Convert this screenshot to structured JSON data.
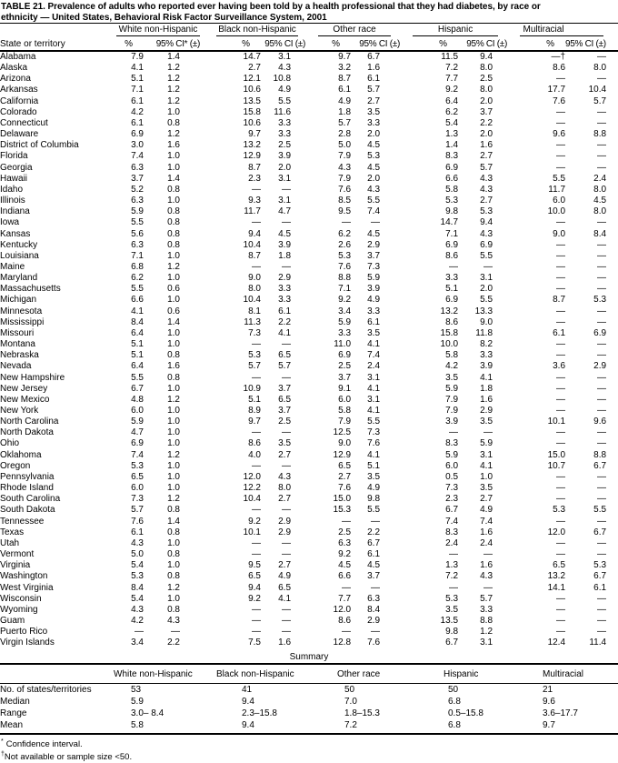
{
  "title": {
    "line1": "TABLE 21. Prevalence of adults who reported ever having been told by a health professional that they had diabetes, by race or",
    "line2": "ethnicity — United States, Behavioral Risk Factor Surveillance System, 2001"
  },
  "table": {
    "row_label_header": "State or territory",
    "groups": [
      "White non-Hispanic",
      "Black non-Hispanic",
      "Other race",
      "Hispanic",
      "Multiracial"
    ],
    "subheaders": {
      "pct": "%",
      "ci_first": "95% CI* (±)",
      "ci": "95% CI (±)"
    },
    "rows": [
      {
        "state": "Alabama",
        "values": [
          "7.9",
          "1.4",
          "14.7",
          "3.1",
          "9.7",
          "6.7",
          "11.5",
          "9.4",
          "—†",
          "—"
        ]
      },
      {
        "state": "Alaska",
        "values": [
          "4.1",
          "1.2",
          "2.7",
          "4.3",
          "3.2",
          "1.6",
          "7.2",
          "8.0",
          "8.6",
          "8.0"
        ]
      },
      {
        "state": "Arizona",
        "values": [
          "5.1",
          "1.2",
          "12.1",
          "10.8",
          "8.7",
          "6.1",
          "7.7",
          "2.5",
          "—",
          "—"
        ]
      },
      {
        "state": "Arkansas",
        "values": [
          "7.1",
          "1.2",
          "10.6",
          "4.9",
          "6.1",
          "5.7",
          "9.2",
          "8.0",
          "17.7",
          "10.4"
        ]
      },
      {
        "state": "California",
        "values": [
          "6.1",
          "1.2",
          "13.5",
          "5.5",
          "4.9",
          "2.7",
          "6.4",
          "2.0",
          "7.6",
          "5.7"
        ]
      },
      {
        "state": "Colorado",
        "values": [
          "4.2",
          "1.0",
          "15.8",
          "11.6",
          "1.8",
          "3.5",
          "6.2",
          "3.7",
          "—",
          "—"
        ]
      },
      {
        "state": "Connecticut",
        "values": [
          "6.1",
          "0.8",
          "10.6",
          "3.3",
          "5.7",
          "3.3",
          "5.4",
          "2.2",
          "—",
          "—"
        ]
      },
      {
        "state": "Delaware",
        "values": [
          "6.9",
          "1.2",
          "9.7",
          "3.3",
          "2.8",
          "2.0",
          "1.3",
          "2.0",
          "9.6",
          "8.8"
        ]
      },
      {
        "state": "District of Columbia",
        "values": [
          "3.0",
          "1.6",
          "13.2",
          "2.5",
          "5.0",
          "4.5",
          "1.4",
          "1.6",
          "—",
          "—"
        ]
      },
      {
        "state": "Florida",
        "values": [
          "7.4",
          "1.0",
          "12.9",
          "3.9",
          "7.9",
          "5.3",
          "8.3",
          "2.7",
          "—",
          "—"
        ]
      },
      {
        "state": "Georgia",
        "values": [
          "6.3",
          "1.0",
          "8.7",
          "2.0",
          "4.3",
          "4.5",
          "6.9",
          "5.7",
          "—",
          "—"
        ]
      },
      {
        "state": "Hawaii",
        "values": [
          "3.7",
          "1.4",
          "2.3",
          "3.1",
          "7.9",
          "2.0",
          "6.6",
          "4.3",
          "5.5",
          "2.4"
        ]
      },
      {
        "state": "Idaho",
        "values": [
          "5.2",
          "0.8",
          "—",
          "—",
          "7.6",
          "4.3",
          "5.8",
          "4.3",
          "11.7",
          "8.0"
        ]
      },
      {
        "state": "Illinois",
        "values": [
          "6.3",
          "1.0",
          "9.3",
          "3.1",
          "8.5",
          "5.5",
          "5.3",
          "2.7",
          "6.0",
          "4.5"
        ]
      },
      {
        "state": "Indiana",
        "values": [
          "5.9",
          "0.8",
          "11.7",
          "4.7",
          "9.5",
          "7.4",
          "9.8",
          "5.3",
          "10.0",
          "8.0"
        ]
      },
      {
        "state": "Iowa",
        "values": [
          "5.5",
          "0.8",
          "—",
          "—",
          "—",
          "—",
          "14.7",
          "9.4",
          "—",
          "—"
        ]
      },
      {
        "state": "Kansas",
        "values": [
          "5.6",
          "0.8",
          "9.4",
          "4.5",
          "6.2",
          "4.5",
          "7.1",
          "4.3",
          "9.0",
          "8.4"
        ]
      },
      {
        "state": "Kentucky",
        "values": [
          "6.3",
          "0.8",
          "10.4",
          "3.9",
          "2.6",
          "2.9",
          "6.9",
          "6.9",
          "—",
          "—"
        ]
      },
      {
        "state": "Louisiana",
        "values": [
          "7.1",
          "1.0",
          "8.7",
          "1.8",
          "5.3",
          "3.7",
          "8.6",
          "5.5",
          "—",
          "—"
        ]
      },
      {
        "state": "Maine",
        "values": [
          "6.8",
          "1.2",
          "—",
          "—",
          "7.6",
          "7.3",
          "—",
          "—",
          "—",
          "—"
        ]
      },
      {
        "state": "Maryland",
        "values": [
          "6.2",
          "1.0",
          "9.0",
          "2.9",
          "8.8",
          "5.9",
          "3.3",
          "3.1",
          "—",
          "—"
        ]
      },
      {
        "state": "Massachusetts",
        "values": [
          "5.5",
          "0.6",
          "8.0",
          "3.3",
          "7.1",
          "3.9",
          "5.1",
          "2.0",
          "—",
          "—"
        ]
      },
      {
        "state": "Michigan",
        "values": [
          "6.6",
          "1.0",
          "10.4",
          "3.3",
          "9.2",
          "4.9",
          "6.9",
          "5.5",
          "8.7",
          "5.3"
        ]
      },
      {
        "state": "Minnesota",
        "values": [
          "4.1",
          "0.6",
          "8.1",
          "6.1",
          "3.4",
          "3.3",
          "13.2",
          "13.3",
          "—",
          "—"
        ]
      },
      {
        "state": "Mississippi",
        "values": [
          "8.4",
          "1.4",
          "11.3",
          "2.2",
          "5.9",
          "6.1",
          "8.6",
          "9.0",
          "—",
          "—"
        ]
      },
      {
        "state": "Missouri",
        "values": [
          "6.4",
          "1.0",
          "7.3",
          "4.1",
          "3.3",
          "3.5",
          "15.8",
          "11.8",
          "6.1",
          "6.9"
        ]
      },
      {
        "state": "Montana",
        "values": [
          "5.1",
          "1.0",
          "—",
          "—",
          "11.0",
          "4.1",
          "10.0",
          "8.2",
          "—",
          "—"
        ]
      },
      {
        "state": "Nebraska",
        "values": [
          "5.1",
          "0.8",
          "5.3",
          "6.5",
          "6.9",
          "7.4",
          "5.8",
          "3.3",
          "—",
          "—"
        ]
      },
      {
        "state": "Nevada",
        "values": [
          "6.4",
          "1.6",
          "5.7",
          "5.7",
          "2.5",
          "2.4",
          "4.2",
          "3.9",
          "3.6",
          "2.9"
        ]
      },
      {
        "state": "New Hampshire",
        "values": [
          "5.5",
          "0.8",
          "—",
          "—",
          "3.7",
          "3.1",
          "3.5",
          "4.1",
          "—",
          "—"
        ]
      },
      {
        "state": "New Jersey",
        "values": [
          "6.7",
          "1.0",
          "10.9",
          "3.7",
          "9.1",
          "4.1",
          "5.9",
          "1.8",
          "—",
          "—"
        ]
      },
      {
        "state": "New Mexico",
        "values": [
          "4.8",
          "1.2",
          "5.1",
          "6.5",
          "6.0",
          "3.1",
          "7.9",
          "1.6",
          "—",
          "—"
        ]
      },
      {
        "state": "New York",
        "values": [
          "6.0",
          "1.0",
          "8.9",
          "3.7",
          "5.8",
          "4.1",
          "7.9",
          "2.9",
          "—",
          "—"
        ]
      },
      {
        "state": "North Carolina",
        "values": [
          "5.9",
          "1.0",
          "9.7",
          "2.5",
          "7.9",
          "5.5",
          "3.9",
          "3.5",
          "10.1",
          "9.6"
        ]
      },
      {
        "state": "North Dakota",
        "values": [
          "4.7",
          "1.0",
          "—",
          "—",
          "12.5",
          "7.3",
          "—",
          "—",
          "—",
          "—"
        ]
      },
      {
        "state": "Ohio",
        "values": [
          "6.9",
          "1.0",
          "8.6",
          "3.5",
          "9.0",
          "7.6",
          "8.3",
          "5.9",
          "—",
          "—"
        ]
      },
      {
        "state": "Oklahoma",
        "values": [
          "7.4",
          "1.2",
          "4.0",
          "2.7",
          "12.9",
          "4.1",
          "5.9",
          "3.1",
          "15.0",
          "8.8"
        ]
      },
      {
        "state": "Oregon",
        "values": [
          "5.3",
          "1.0",
          "—",
          "—",
          "6.5",
          "5.1",
          "6.0",
          "4.1",
          "10.7",
          "6.7"
        ]
      },
      {
        "state": "Pennsylvania",
        "values": [
          "6.5",
          "1.0",
          "12.0",
          "4.3",
          "2.7",
          "3.5",
          "0.5",
          "1.0",
          "—",
          "—"
        ]
      },
      {
        "state": "Rhode Island",
        "values": [
          "6.0",
          "1.0",
          "12.2",
          "8.0",
          "7.6",
          "4.9",
          "7.3",
          "3.5",
          "—",
          "—"
        ]
      },
      {
        "state": "South Carolina",
        "values": [
          "7.3",
          "1.2",
          "10.4",
          "2.7",
          "15.0",
          "9.8",
          "2.3",
          "2.7",
          "—",
          "—"
        ]
      },
      {
        "state": "South Dakota",
        "values": [
          "5.7",
          "0.8",
          "—",
          "—",
          "15.3",
          "5.5",
          "6.7",
          "4.9",
          "5.3",
          "5.5"
        ]
      },
      {
        "state": "Tennessee",
        "values": [
          "7.6",
          "1.4",
          "9.2",
          "2.9",
          "—",
          "—",
          "7.4",
          "7.4",
          "—",
          "—"
        ]
      },
      {
        "state": "Texas",
        "values": [
          "6.1",
          "0.8",
          "10.1",
          "2.9",
          "2.5",
          "2.2",
          "8.3",
          "1.6",
          "12.0",
          "6.7"
        ]
      },
      {
        "state": "Utah",
        "values": [
          "4.3",
          "1.0",
          "—",
          "—",
          "6.3",
          "6.7",
          "2.4",
          "2.4",
          "—",
          "—"
        ]
      },
      {
        "state": "Vermont",
        "values": [
          "5.0",
          "0.8",
          "—",
          "—",
          "9.2",
          "6.1",
          "—",
          "—",
          "—",
          "—"
        ]
      },
      {
        "state": "Virginia",
        "values": [
          "5.4",
          "1.0",
          "9.5",
          "2.7",
          "4.5",
          "4.5",
          "1.3",
          "1.6",
          "6.5",
          "5.3"
        ]
      },
      {
        "state": "Washington",
        "values": [
          "5.3",
          "0.8",
          "6.5",
          "4.9",
          "6.6",
          "3.7",
          "7.2",
          "4.3",
          "13.2",
          "6.7"
        ]
      },
      {
        "state": "West Virginia",
        "values": [
          "8.4",
          "1.2",
          "9.4",
          "6.5",
          "—",
          "—",
          "—",
          "—",
          "14.1",
          "6.1"
        ]
      },
      {
        "state": "Wisconsin",
        "values": [
          "5.4",
          "1.0",
          "9.2",
          "4.1",
          "7.7",
          "6.3",
          "5.3",
          "5.7",
          "—",
          "—"
        ]
      },
      {
        "state": "Wyoming",
        "values": [
          "4.3",
          "0.8",
          "—",
          "—",
          "12.0",
          "8.4",
          "3.5",
          "3.3",
          "—",
          "—"
        ]
      },
      {
        "state": "Guam",
        "values": [
          "4.2",
          "4.3",
          "—",
          "—",
          "8.6",
          "2.9",
          "13.5",
          "8.8",
          "—",
          "—"
        ]
      },
      {
        "state": "Puerto Rico",
        "values": [
          "—",
          "—",
          "—",
          "—",
          "—",
          "—",
          "9.8",
          "1.2",
          "—",
          "—"
        ]
      },
      {
        "state": "Virgin Islands",
        "values": [
          "3.4",
          "2.2",
          "7.5",
          "1.6",
          "12.8",
          "7.6",
          "6.7",
          "3.1",
          "12.4",
          "11.4"
        ]
      }
    ]
  },
  "summary": {
    "title": "Summary",
    "columns": [
      "White non-Hispanic",
      "Black non-Hispanic",
      "Other race",
      "Hispanic",
      "Multiracial"
    ],
    "rows": [
      {
        "label": "No. of states/territories",
        "values": [
          "53",
          "41",
          "50",
          "50",
          "21"
        ]
      },
      {
        "label": "Median",
        "values": [
          "5.9",
          "9.4",
          "7.0",
          "6.8",
          "9.6"
        ]
      },
      {
        "label": "Range",
        "values": [
          "3.0– 8.4",
          "2.3–15.8",
          "1.8–15.3",
          "0.5–15.8",
          "3.6–17.7"
        ]
      },
      {
        "label": "Mean",
        "values": [
          "5.8",
          "9.4",
          "7.2",
          "6.8",
          "9.7"
        ]
      }
    ]
  },
  "footnotes": [
    {
      "marker": "*",
      "text": "Confidence interval."
    },
    {
      "marker": "†",
      "text": "Not available or sample size <50."
    }
  ]
}
